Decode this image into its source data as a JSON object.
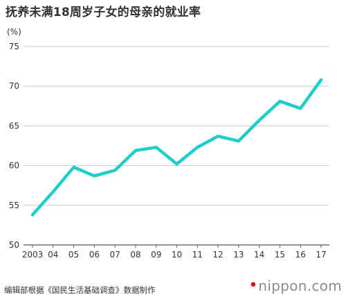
{
  "title": "抚养未满18周岁子女的母亲的就业率",
  "source": "编辑部根据《国民生活基础调查》数据制作",
  "brand": {
    "mark": "•",
    "name": "nippon.com",
    "mark_color": "#e60012"
  },
  "colors": {
    "line": "#1ecec8",
    "grid": "#cccccc",
    "axis": "#555555",
    "text": "#333333"
  },
  "chart_data": {
    "type": "line",
    "ylabel": "(%)",
    "ylim": [
      50,
      75
    ],
    "yticks": [
      50,
      55,
      60,
      65,
      70,
      75
    ],
    "grid": true,
    "categories": [
      "2003",
      "04",
      "05",
      "06",
      "07",
      "08",
      "09",
      "10",
      "11",
      "12",
      "13",
      "14",
      "15",
      "16",
      "17"
    ],
    "series": [
      {
        "values": [
          53.8,
          56.7,
          59.8,
          58.7,
          59.4,
          61.9,
          62.3,
          60.2,
          62.3,
          63.7,
          63.1,
          65.7,
          68.1,
          67.2,
          70.8
        ]
      }
    ]
  }
}
